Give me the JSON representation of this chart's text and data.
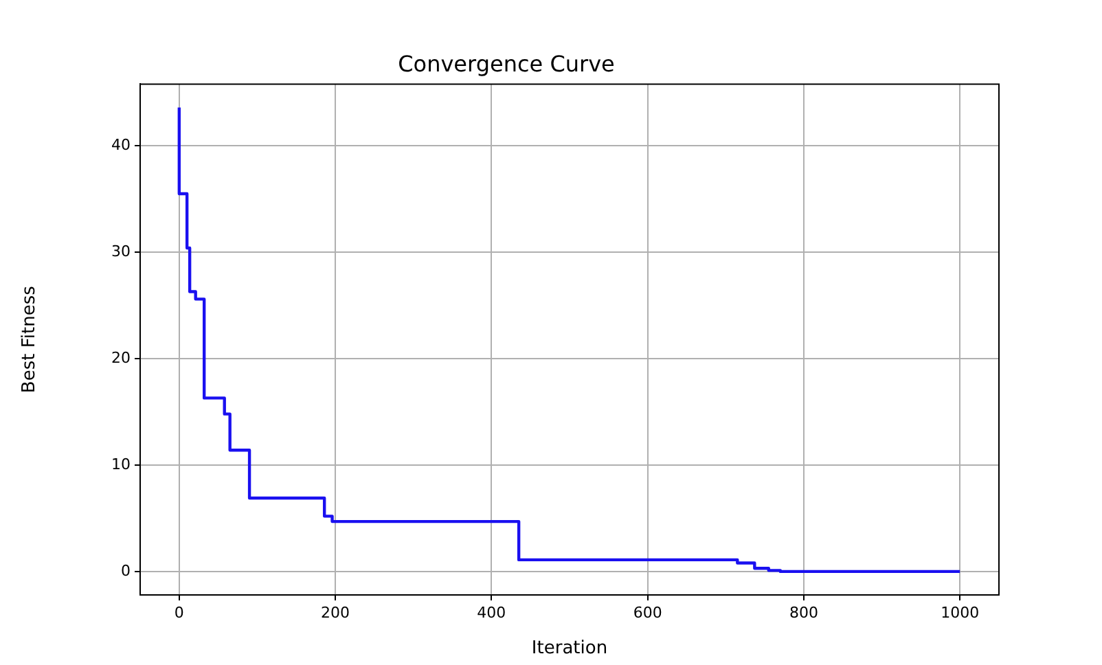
{
  "chart_data": {
    "type": "step",
    "title": "Convergence Curve",
    "xlabel": "Iteration",
    "ylabel": "Best Fitness",
    "x": [
      0,
      10,
      13.5,
      21,
      32,
      58,
      65,
      90,
      186,
      196,
      435,
      715,
      737,
      755,
      770,
      1000
    ],
    "series": [
      {
        "color": "#1a10f0",
        "values": [
          43.6,
          35.5,
          30.4,
          26.3,
          25.6,
          16.3,
          14.8,
          11.4,
          6.9,
          5.2,
          4.7,
          1.1,
          0.8,
          0.3,
          0.1,
          0.0
        ]
      }
    ],
    "xlim": [
      -50,
      1050
    ],
    "xticks": [
      0,
      200,
      400,
      600,
      800,
      1000
    ],
    "ylim": [
      -2.2,
      45.8
    ],
    "yticks": [
      0,
      10,
      20,
      30,
      40
    ],
    "grid": true,
    "legend": false,
    "marker": "none",
    "line_style": "solid"
  }
}
